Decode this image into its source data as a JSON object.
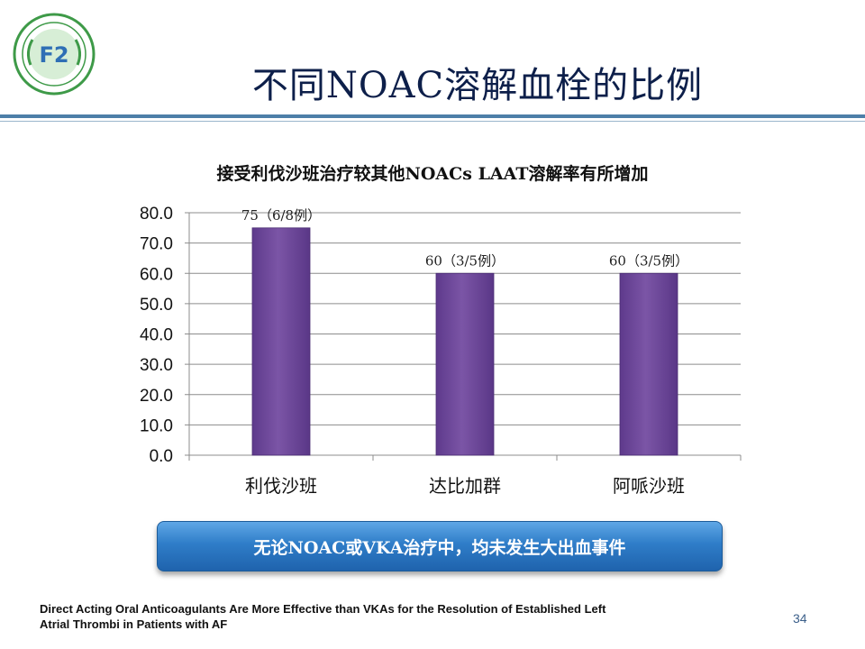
{
  "slide": {
    "title": "不同NOAC溶解血栓的比例",
    "callout": "无论NOAC或VKA治疗中，均未发生大出血事件",
    "reference_line1": "Direct Acting Oral Anticoagulants Are More Effective than VKAs for the Resolution of Established Left",
    "reference_line2": "Atrial Thrombi in Patients with AF",
    "page_number": "34"
  },
  "logo": {
    "name": "hospital-emblem",
    "text": "F2"
  },
  "chart_data": {
    "type": "bar",
    "title": "接受利伐沙班治疗较其他NOACs LAAT溶解率有所增加",
    "categories": [
      "利伐沙班",
      "达比加群",
      "阿哌沙班"
    ],
    "values": [
      75,
      60,
      60
    ],
    "data_labels": [
      "75（6/8例）",
      "60（3/5例）",
      "60（3/5例）"
    ],
    "ylim": [
      0,
      80
    ],
    "yticks": [
      "0.0",
      "10.0",
      "20.0",
      "30.0",
      "40.0",
      "50.0",
      "60.0",
      "70.0",
      "80.0"
    ],
    "grid": true,
    "bar_color": "#7b55a6"
  }
}
